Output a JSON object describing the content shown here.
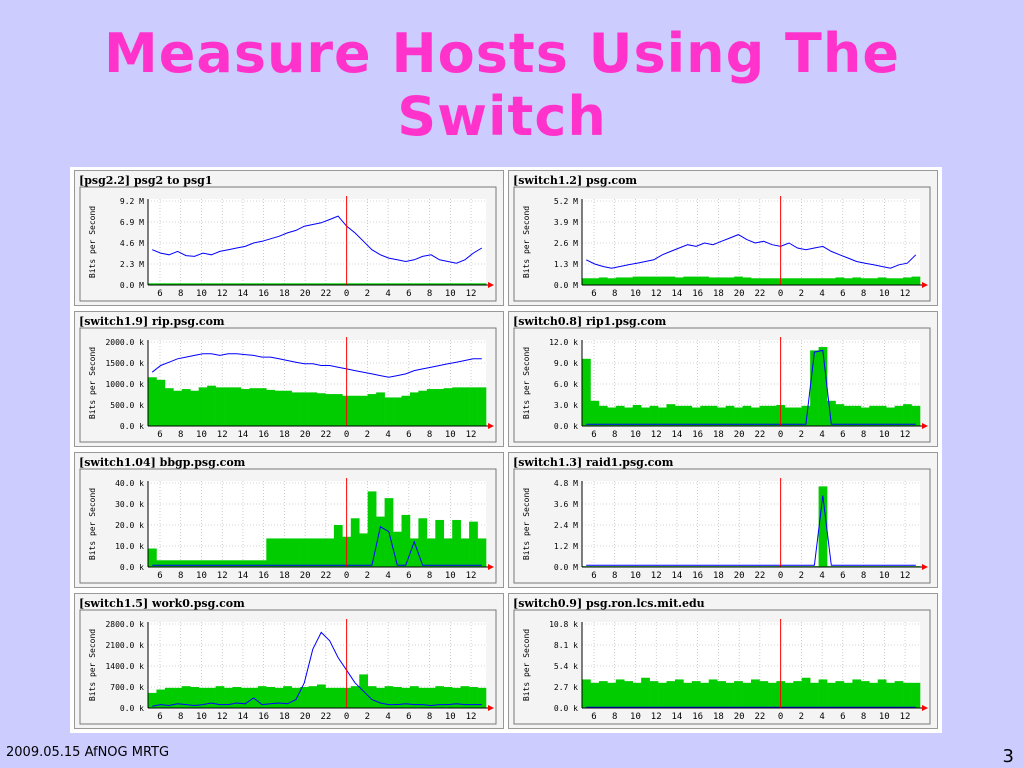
{
  "slide": {
    "title": "Measure Hosts Using The Switch",
    "footer_left": "2009.05.15 AfNOG MRTG",
    "slide_number": "3"
  },
  "colors": {
    "background": "#ccccff",
    "title": "#ff33cc",
    "in_traffic": "#00cc00",
    "out_traffic": "#0000ff",
    "now_marker": "#ff0000"
  },
  "chart_data": [
    {
      "type": "area",
      "title": "[psg2.2] psg2 to psg1",
      "ylabel": "Bits per Second",
      "ytick_labels": [
        "0.0 M",
        "2.3 M",
        "4.6 M",
        "6.9 M",
        "9.2 M"
      ],
      "xtick_labels": [
        "6",
        "8",
        "10",
        "12",
        "14",
        "16",
        "18",
        "20",
        "22",
        "0",
        "2",
        "4",
        "6",
        "8",
        "10",
        "12"
      ],
      "in_series": [
        0.02,
        0.02,
        0.02,
        0.02,
        0.02,
        0.02,
        0.02,
        0.02,
        0.02,
        0.02,
        0.02,
        0.02,
        0.02,
        0.02,
        0.02,
        0.02,
        0.02,
        0.02,
        0.02,
        0.02,
        0.02,
        0.02,
        0.02,
        0.02,
        0.02,
        0.02,
        0.02,
        0.02,
        0.02,
        0.02,
        0.02,
        0.02,
        0.02,
        0.02,
        0.02,
        0.02,
        0.02,
        0.02,
        0.02,
        0.02
      ],
      "out_series": [
        0.42,
        0.38,
        0.36,
        0.4,
        0.35,
        0.34,
        0.38,
        0.36,
        0.4,
        0.42,
        0.44,
        0.46,
        0.5,
        0.52,
        0.55,
        0.58,
        0.62,
        0.65,
        0.7,
        0.72,
        0.74,
        0.78,
        0.82,
        0.7,
        0.62,
        0.52,
        0.42,
        0.36,
        0.32,
        0.3,
        0.28,
        0.3,
        0.34,
        0.36,
        0.3,
        0.28,
        0.26,
        0.3,
        0.38,
        0.44
      ]
    },
    {
      "type": "area",
      "title": "[switch1.2] psg.com",
      "ylabel": "Bits per Second",
      "ytick_labels": [
        "0.0 M",
        "1.3 M",
        "2.6 M",
        "3.9 M",
        "5.2 M"
      ],
      "xtick_labels": [
        "6",
        "8",
        "10",
        "12",
        "14",
        "16",
        "18",
        "20",
        "22",
        "0",
        "2",
        "4",
        "6",
        "8",
        "10",
        "12"
      ],
      "in_series": [
        0.08,
        0.08,
        0.09,
        0.08,
        0.09,
        0.09,
        0.1,
        0.1,
        0.1,
        0.1,
        0.1,
        0.09,
        0.1,
        0.1,
        0.1,
        0.09,
        0.09,
        0.09,
        0.1,
        0.09,
        0.08,
        0.08,
        0.08,
        0.08,
        0.08,
        0.08,
        0.08,
        0.08,
        0.08,
        0.08,
        0.09,
        0.08,
        0.09,
        0.08,
        0.08,
        0.09,
        0.08,
        0.08,
        0.09,
        0.1
      ],
      "out_series": [
        0.3,
        0.25,
        0.22,
        0.2,
        0.22,
        0.24,
        0.26,
        0.28,
        0.3,
        0.36,
        0.4,
        0.44,
        0.48,
        0.46,
        0.5,
        0.48,
        0.52,
        0.56,
        0.6,
        0.54,
        0.5,
        0.52,
        0.48,
        0.46,
        0.5,
        0.44,
        0.42,
        0.44,
        0.46,
        0.4,
        0.36,
        0.32,
        0.28,
        0.26,
        0.24,
        0.22,
        0.2,
        0.24,
        0.26,
        0.36
      ]
    },
    {
      "type": "area",
      "title": "[switch1.9] rip.psg.com",
      "ylabel": "Bits per Second",
      "ytick_labels": [
        "0.0 k",
        "500.0 k",
        "1000.0 k",
        "1500.0 k",
        "2000.0 k"
      ],
      "xtick_labels": [
        "6",
        "8",
        "10",
        "12",
        "14",
        "16",
        "18",
        "20",
        "22",
        "0",
        "2",
        "4",
        "6",
        "8",
        "10",
        "12"
      ],
      "in_series": [
        0.58,
        0.55,
        0.45,
        0.42,
        0.44,
        0.42,
        0.46,
        0.48,
        0.46,
        0.46,
        0.46,
        0.44,
        0.45,
        0.45,
        0.43,
        0.42,
        0.42,
        0.4,
        0.4,
        0.4,
        0.39,
        0.38,
        0.38,
        0.36,
        0.36,
        0.36,
        0.38,
        0.4,
        0.34,
        0.34,
        0.36,
        0.4,
        0.42,
        0.44,
        0.44,
        0.45,
        0.46,
        0.46,
        0.46,
        0.46
      ],
      "out_series": [
        0.64,
        0.72,
        0.76,
        0.8,
        0.82,
        0.84,
        0.86,
        0.86,
        0.84,
        0.86,
        0.86,
        0.85,
        0.84,
        0.82,
        0.82,
        0.8,
        0.78,
        0.76,
        0.74,
        0.74,
        0.72,
        0.72,
        0.7,
        0.68,
        0.66,
        0.64,
        0.62,
        0.6,
        0.58,
        0.6,
        0.62,
        0.66,
        0.68,
        0.7,
        0.72,
        0.74,
        0.76,
        0.78,
        0.8,
        0.8
      ]
    },
    {
      "type": "area",
      "title": "[switch0.8] rip1.psg.com",
      "ylabel": "Bits per Second",
      "ytick_labels": [
        "0.0 k",
        "3.0 k",
        "6.0 k",
        "9.0 k",
        "12.0 k"
      ],
      "xtick_labels": [
        "6",
        "8",
        "10",
        "12",
        "14",
        "16",
        "18",
        "20",
        "22",
        "0",
        "2",
        "4",
        "6",
        "8",
        "10",
        "12"
      ],
      "in_series": [
        0.8,
        0.3,
        0.24,
        0.22,
        0.24,
        0.22,
        0.25,
        0.22,
        0.24,
        0.22,
        0.26,
        0.24,
        0.24,
        0.22,
        0.24,
        0.24,
        0.22,
        0.24,
        0.22,
        0.24,
        0.22,
        0.24,
        0.24,
        0.25,
        0.22,
        0.22,
        0.24,
        0.9,
        0.94,
        0.3,
        0.26,
        0.24,
        0.24,
        0.22,
        0.24,
        0.24,
        0.22,
        0.24,
        0.26,
        0.24
      ],
      "out_series": [
        0.02,
        0.02,
        0.02,
        0.02,
        0.02,
        0.02,
        0.02,
        0.02,
        0.02,
        0.02,
        0.02,
        0.02,
        0.02,
        0.02,
        0.02,
        0.02,
        0.02,
        0.02,
        0.02,
        0.02,
        0.02,
        0.02,
        0.02,
        0.02,
        0.02,
        0.02,
        0.02,
        0.88,
        0.9,
        0.02,
        0.02,
        0.02,
        0.02,
        0.02,
        0.02,
        0.02,
        0.02,
        0.02,
        0.02,
        0.02
      ]
    },
    {
      "type": "area",
      "title": "[switch1.04] bbgp.psg.com",
      "ylabel": "Bits per Second",
      "ytick_labels": [
        "0.0 k",
        "10.0 k",
        "20.0 k",
        "30.0 k",
        "40.0 k"
      ],
      "xtick_labels": [
        "6",
        "8",
        "10",
        "12",
        "14",
        "16",
        "18",
        "20",
        "22",
        "0",
        "2",
        "4",
        "6",
        "8",
        "10",
        "12"
      ],
      "in_series": [
        0.22,
        0.08,
        0.08,
        0.08,
        0.08,
        0.08,
        0.08,
        0.08,
        0.08,
        0.08,
        0.08,
        0.08,
        0.08,
        0.08,
        0.34,
        0.34,
        0.34,
        0.34,
        0.34,
        0.34,
        0.34,
        0.34,
        0.5,
        0.36,
        0.58,
        0.4,
        0.9,
        0.6,
        0.82,
        0.42,
        0.62,
        0.34,
        0.58,
        0.34,
        0.56,
        0.34,
        0.56,
        0.34,
        0.54,
        0.34
      ],
      "out_series": [
        0.02,
        0.02,
        0.02,
        0.02,
        0.02,
        0.02,
        0.02,
        0.02,
        0.02,
        0.02,
        0.02,
        0.02,
        0.02,
        0.02,
        0.02,
        0.02,
        0.02,
        0.02,
        0.02,
        0.02,
        0.02,
        0.02,
        0.02,
        0.02,
        0.02,
        0.02,
        0.02,
        0.48,
        0.42,
        0.02,
        0.02,
        0.3,
        0.02,
        0.02,
        0.02,
        0.02,
        0.02,
        0.02,
        0.02,
        0.02
      ]
    },
    {
      "type": "area",
      "title": "[switch1.3] raid1.psg.com",
      "ylabel": "Bits per Second",
      "ytick_labels": [
        "0.0 M",
        "1.2 M",
        "2.4 M",
        "3.6 M",
        "4.8 M"
      ],
      "xtick_labels": [
        "6",
        "8",
        "10",
        "12",
        "14",
        "16",
        "18",
        "20",
        "22",
        "0",
        "2",
        "4",
        "6",
        "8",
        "10",
        "12"
      ],
      "in_series": [
        0.01,
        0.01,
        0.01,
        0.01,
        0.01,
        0.01,
        0.01,
        0.01,
        0.01,
        0.01,
        0.01,
        0.01,
        0.01,
        0.01,
        0.01,
        0.01,
        0.01,
        0.01,
        0.01,
        0.01,
        0.01,
        0.01,
        0.01,
        0.01,
        0.01,
        0.01,
        0.01,
        0.01,
        0.96,
        0.01,
        0.01,
        0.01,
        0.01,
        0.01,
        0.01,
        0.01,
        0.01,
        0.01,
        0.01,
        0.01
      ],
      "out_series": [
        0.02,
        0.02,
        0.02,
        0.02,
        0.02,
        0.02,
        0.02,
        0.02,
        0.02,
        0.02,
        0.02,
        0.02,
        0.02,
        0.02,
        0.02,
        0.02,
        0.02,
        0.02,
        0.02,
        0.02,
        0.02,
        0.02,
        0.02,
        0.02,
        0.02,
        0.02,
        0.02,
        0.02,
        0.85,
        0.02,
        0.02,
        0.02,
        0.02,
        0.02,
        0.02,
        0.02,
        0.02,
        0.02,
        0.02,
        0.02
      ]
    },
    {
      "type": "area",
      "title": "[switch1.5] work0.psg.com",
      "ylabel": "Bits per Second",
      "ytick_labels": [
        "0.0 k",
        "700.0 k",
        "1400.0 k",
        "2100.0 k",
        "2800.0 k"
      ],
      "xtick_labels": [
        "6",
        "8",
        "10",
        "12",
        "14",
        "16",
        "18",
        "20",
        "22",
        "0",
        "2",
        "4",
        "6",
        "8",
        "10",
        "12"
      ],
      "in_series": [
        0.18,
        0.22,
        0.24,
        0.24,
        0.26,
        0.25,
        0.24,
        0.24,
        0.26,
        0.24,
        0.25,
        0.24,
        0.24,
        0.26,
        0.25,
        0.24,
        0.26,
        0.24,
        0.25,
        0.26,
        0.28,
        0.24,
        0.24,
        0.24,
        0.26,
        0.4,
        0.26,
        0.24,
        0.26,
        0.25,
        0.24,
        0.26,
        0.24,
        0.24,
        0.26,
        0.25,
        0.24,
        0.26,
        0.25,
        0.24
      ],
      "out_series": [
        0.02,
        0.04,
        0.03,
        0.05,
        0.04,
        0.03,
        0.04,
        0.06,
        0.04,
        0.04,
        0.06,
        0.05,
        0.12,
        0.04,
        0.05,
        0.06,
        0.05,
        0.1,
        0.3,
        0.7,
        0.9,
        0.8,
        0.6,
        0.45,
        0.3,
        0.2,
        0.1,
        0.06,
        0.04,
        0.04,
        0.05,
        0.04,
        0.04,
        0.03,
        0.04,
        0.04,
        0.05,
        0.04,
        0.04,
        0.04
      ]
    },
    {
      "type": "area",
      "title": "[switch0.9] psg.ron.lcs.mit.edu",
      "ylabel": "Bits per Second",
      "ytick_labels": [
        "0.0 k",
        "2.7 k",
        "5.4 k",
        "8.1 k",
        "10.8 k"
      ],
      "xtick_labels": [
        "6",
        "8",
        "10",
        "12",
        "14",
        "16",
        "18",
        "20",
        "22",
        "0",
        "2",
        "4",
        "6",
        "8",
        "10",
        "12"
      ],
      "in_series": [
        0.34,
        0.3,
        0.32,
        0.3,
        0.34,
        0.32,
        0.3,
        0.36,
        0.32,
        0.3,
        0.32,
        0.34,
        0.3,
        0.32,
        0.3,
        0.34,
        0.32,
        0.3,
        0.32,
        0.3,
        0.34,
        0.32,
        0.3,
        0.32,
        0.3,
        0.32,
        0.36,
        0.3,
        0.34,
        0.3,
        0.32,
        0.3,
        0.34,
        0.32,
        0.3,
        0.34,
        0.3,
        0.32,
        0.3,
        0.3
      ],
      "out_series": [
        0.01,
        0.01,
        0.01,
        0.01,
        0.01,
        0.01,
        0.01,
        0.01,
        0.01,
        0.01,
        0.01,
        0.01,
        0.01,
        0.01,
        0.01,
        0.01,
        0.01,
        0.01,
        0.01,
        0.01,
        0.01,
        0.01,
        0.01,
        0.01,
        0.01,
        0.01,
        0.01,
        0.01,
        0.01,
        0.01,
        0.01,
        0.01,
        0.01,
        0.01,
        0.01,
        0.01,
        0.01,
        0.01,
        0.01,
        0.01
      ]
    }
  ]
}
